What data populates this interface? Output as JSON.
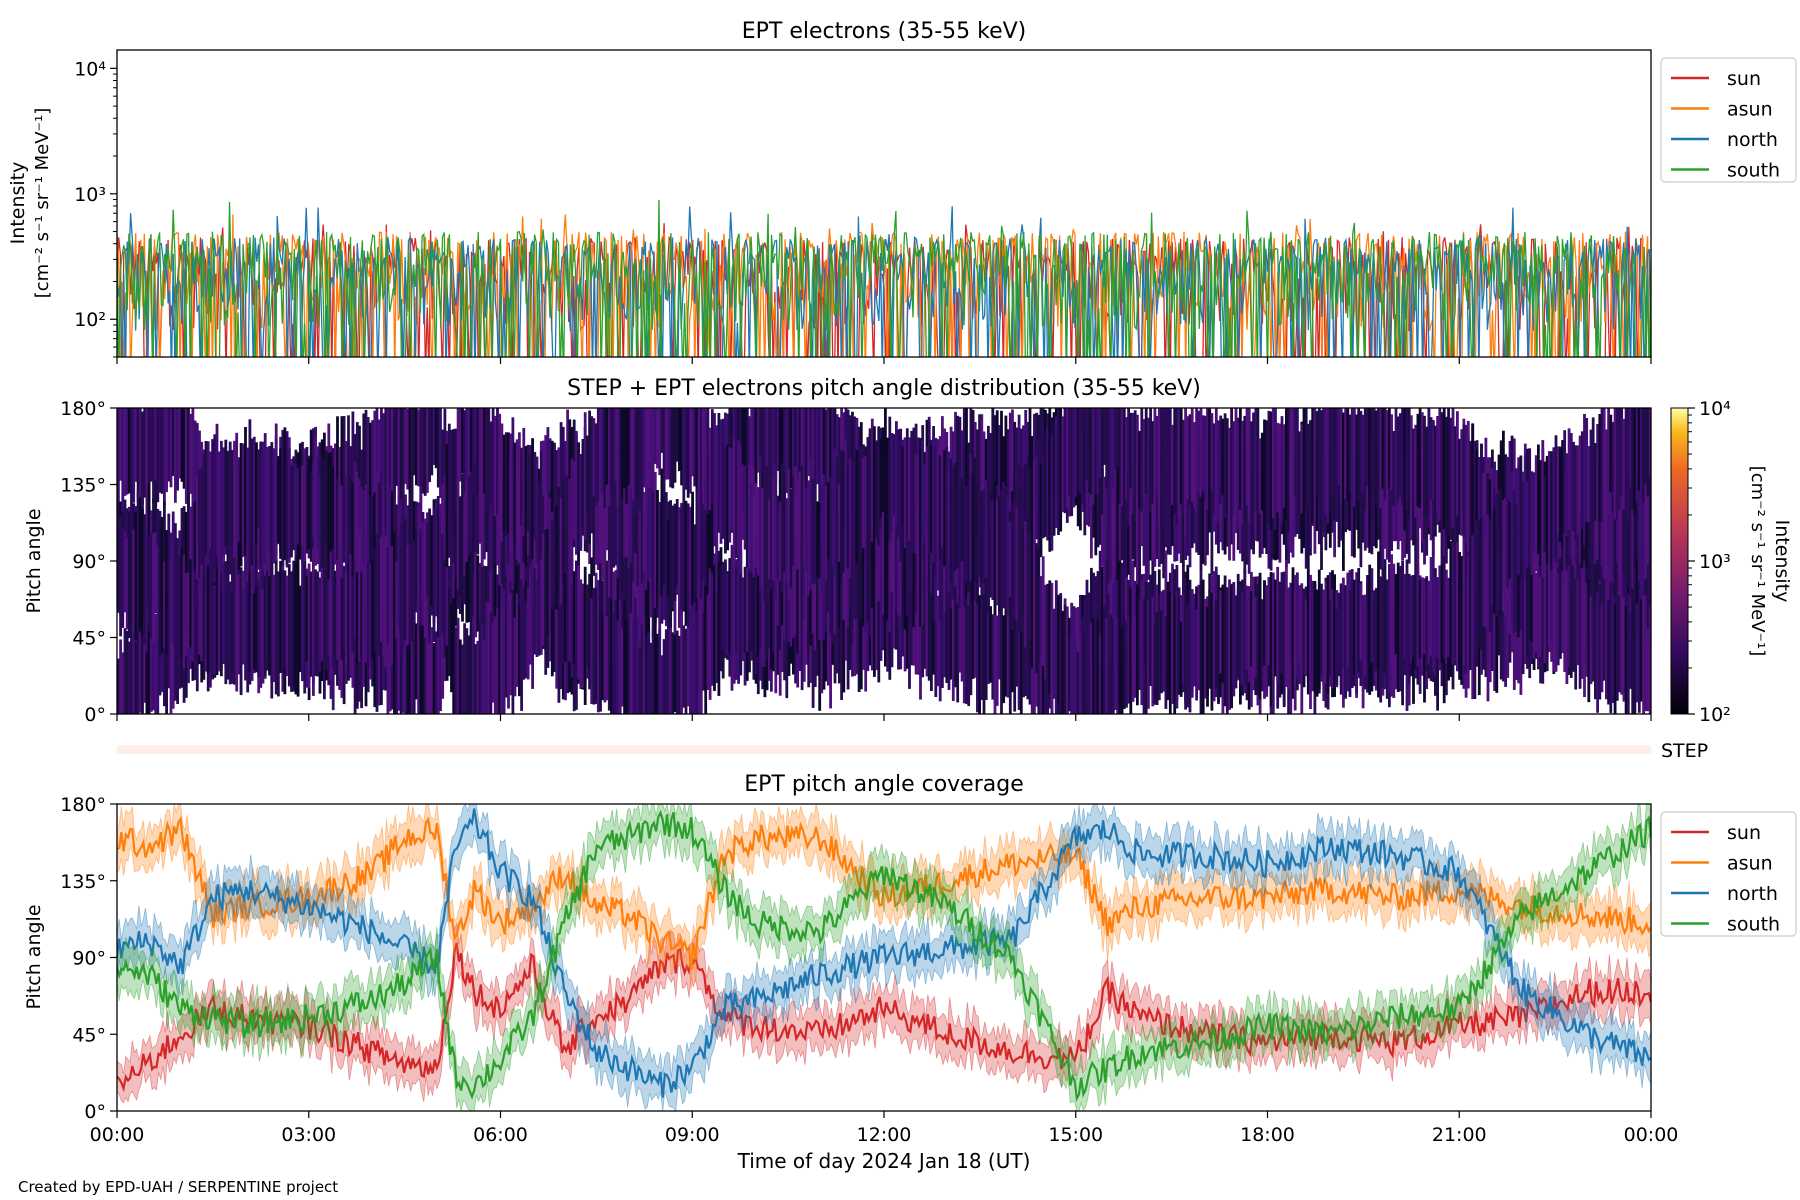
{
  "credit": "Created by EPD-UAH / SERPENTINE project",
  "colors": {
    "sun": "#d62728",
    "asun": "#ff7f0e",
    "north": "#1f77b4",
    "south": "#2ca02c",
    "step_strip": "#fdeee6"
  },
  "chart_data": [
    {
      "type": "line",
      "title": "EPT electrons (35-55 keV)",
      "ylabel_lines": [
        "Intensity",
        "[cm⁻² s⁻¹ sr⁻¹ MeV⁻¹]"
      ],
      "yscale": "log",
      "ylim": [
        50,
        14000
      ],
      "yticks": [
        {
          "value": 100,
          "label": "10²"
        },
        {
          "value": 1000,
          "label": "10³"
        },
        {
          "value": 10000,
          "label": "10⁴"
        }
      ],
      "xlim": [
        "2024-01-18T00:00",
        "2024-01-19T00:00"
      ],
      "legend_position": "outside-right-top",
      "series": [
        {
          "name": "sun",
          "typical_range": [
            50,
            450
          ],
          "peak": 600
        },
        {
          "name": "asun",
          "typical_range": [
            50,
            500
          ],
          "peak": 750
        },
        {
          "name": "north",
          "typical_range": [
            50,
            450
          ],
          "peak": 820
        },
        {
          "name": "south",
          "typical_range": [
            50,
            500
          ],
          "peak": 900
        }
      ]
    },
    {
      "type": "heatmap",
      "title": "STEP + EPT electrons pitch angle distribution (35-55 keV)",
      "ylabel": "Pitch angle",
      "ylim": [
        0,
        180
      ],
      "yticks": [
        "0°",
        "45°",
        "90°",
        "135°",
        "180°"
      ],
      "colorbar": {
        "label_lines": [
          "Intensity",
          "[cm⁻² s⁻¹ sr⁻¹ MeV⁻¹]"
        ],
        "scale": "log",
        "range": [
          100,
          10000
        ],
        "ticks": [
          "10²",
          "10³",
          "10⁴"
        ],
        "colormap": "inferno"
      },
      "typical_intensity": 300
    },
    {
      "type": "strip",
      "label": "STEP"
    },
    {
      "type": "line",
      "title": "EPT pitch angle coverage",
      "ylabel": "Pitch angle",
      "xlabel": "Time of day 2024 Jan 18 (UT)",
      "ylim": [
        0,
        180
      ],
      "yticks": [
        "0°",
        "45°",
        "90°",
        "135°",
        "180°"
      ],
      "xticks": [
        "00:00",
        "03:00",
        "06:00",
        "09:00",
        "12:00",
        "15:00",
        "18:00",
        "21:00",
        "00:00"
      ],
      "legend_position": "outside-right-top",
      "band_halfwidth_deg": 12,
      "series": [
        {
          "name": "sun",
          "hours": [
            0,
            0.5,
            1,
            1.5,
            2,
            3,
            4,
            4.5,
            5,
            5.3,
            5.6,
            6,
            6.5,
            7,
            7.5,
            8,
            8.5,
            9,
            9.5,
            10,
            11,
            12,
            13,
            14,
            15,
            15.5,
            16,
            17,
            18,
            19,
            20,
            21,
            22,
            23,
            24
          ],
          "values": [
            15,
            28,
            45,
            60,
            55,
            50,
            35,
            28,
            25,
            95,
            70,
            60,
            85,
            35,
            55,
            65,
            85,
            90,
            55,
            50,
            45,
            60,
            45,
            35,
            30,
            70,
            55,
            45,
            40,
            45,
            40,
            50,
            55,
            70,
            70
          ]
        },
        {
          "name": "asun",
          "hours": [
            0,
            0.5,
            1,
            1.5,
            2,
            3,
            4,
            4.5,
            5,
            5.3,
            5.6,
            6,
            6.5,
            7,
            7.5,
            8,
            8.5,
            9,
            9.5,
            10,
            11,
            12,
            13,
            14,
            15,
            15.5,
            16,
            17,
            18,
            19,
            20,
            21,
            22,
            23,
            24
          ],
          "values": [
            160,
            155,
            165,
            115,
            120,
            125,
            140,
            160,
            165,
            100,
            130,
            110,
            120,
            140,
            120,
            115,
            100,
            90,
            150,
            160,
            160,
            125,
            135,
            145,
            150,
            110,
            120,
            125,
            125,
            130,
            125,
            130,
            120,
            115,
            110
          ]
        },
        {
          "name": "north",
          "hours": [
            0,
            0.5,
            1,
            1.5,
            2,
            3,
            4,
            4.5,
            5,
            5.3,
            5.6,
            6,
            6.5,
            7,
            7.5,
            8,
            8.5,
            9,
            9.5,
            10,
            11,
            12,
            13,
            14,
            15,
            15.5,
            16,
            17,
            18,
            19,
            20,
            21,
            22,
            23,
            24
          ],
          "values": [
            95,
            100,
            85,
            125,
            130,
            120,
            105,
            95,
            85,
            155,
            170,
            140,
            125,
            70,
            35,
            25,
            15,
            25,
            60,
            65,
            80,
            90,
            95,
            100,
            160,
            165,
            150,
            150,
            145,
            155,
            150,
            140,
            70,
            45,
            30
          ]
        },
        {
          "name": "south",
          "hours": [
            0,
            0.5,
            1,
            1.5,
            2,
            3,
            4,
            4.5,
            5,
            5.3,
            5.6,
            6,
            6.5,
            7,
            7.5,
            8,
            8.5,
            9,
            9.5,
            10,
            11,
            12,
            13,
            14,
            15,
            15.5,
            16,
            17,
            18,
            19,
            20,
            21,
            22,
            23,
            24
          ],
          "values": [
            85,
            80,
            60,
            55,
            50,
            55,
            65,
            75,
            90,
            20,
            15,
            30,
            55,
            110,
            155,
            160,
            170,
            165,
            130,
            110,
            105,
            140,
            120,
            90,
            15,
            25,
            35,
            40,
            50,
            45,
            55,
            60,
            115,
            140,
            165
          ]
        }
      ]
    }
  ]
}
